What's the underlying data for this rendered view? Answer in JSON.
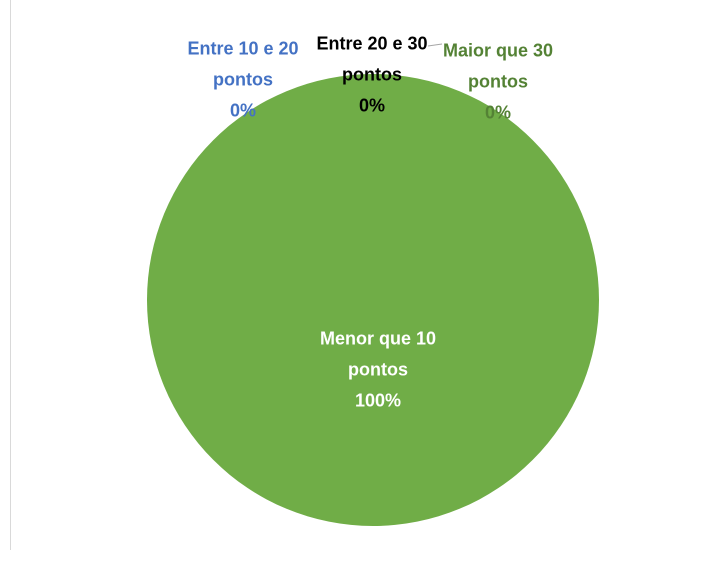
{
  "chart_data": {
    "type": "pie",
    "categories": [
      "Menor que 10 pontos",
      "Entre 10 e 20 pontos",
      "Entre 20 e 30 pontos",
      "Maior que 30 pontos"
    ],
    "values": [
      100,
      0,
      0,
      0
    ],
    "value_labels": [
      "100%",
      "0%",
      "0%",
      "0%"
    ],
    "colors": [
      "#70ad47",
      "#4472c4",
      "#000000",
      "#548235"
    ],
    "label_colors": [
      "#ffffff",
      "#4472c4",
      "#000000",
      "#548235"
    ]
  }
}
